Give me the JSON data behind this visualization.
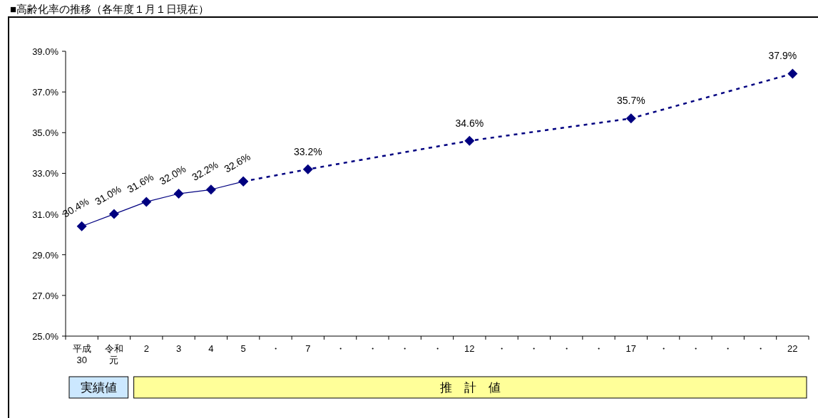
{
  "chart_data": {
    "type": "line",
    "title": "■高齢化率の推移（各年度１月１日現在）",
    "categories": [
      "平成30",
      "令和元",
      "2",
      "3",
      "4",
      "5",
      "・",
      "7",
      "・",
      "・",
      "・",
      "・",
      "12",
      "・",
      "・",
      "・",
      "・",
      "17",
      "・",
      "・",
      "・",
      "・",
      "22"
    ],
    "series": [
      {
        "color": "#000080",
        "line_style": "solid",
        "values": [
          30.4,
          31.0,
          31.6,
          32.0,
          32.2,
          32.6,
          null,
          null,
          null,
          null,
          null,
          null,
          null,
          null,
          null,
          null,
          null,
          null,
          null,
          null,
          null,
          null,
          null
        ]
      },
      {
        "color": "#000080",
        "line_style": "dashed",
        "values": [
          null,
          null,
          null,
          null,
          null,
          32.6,
          null,
          33.2,
          null,
          null,
          null,
          null,
          34.6,
          null,
          null,
          null,
          null,
          35.7,
          null,
          null,
          null,
          null,
          37.9
        ]
      }
    ],
    "value_labels": [
      "30.4%",
      "31.0%",
      "31.6%",
      "32.0%",
      "32.2%",
      "32.6%",
      null,
      "33.2%",
      null,
      null,
      null,
      null,
      "34.6%",
      null,
      null,
      null,
      null,
      "35.7%",
      null,
      null,
      null,
      null,
      "37.9%"
    ],
    "marker": "diamond",
    "ylim": [
      25,
      39
    ],
    "yticks": [
      {
        "value": 25,
        "label": "25.0%"
      },
      {
        "value": 27,
        "label": "27.0%"
      },
      {
        "value": 29,
        "label": "29.0%"
      },
      {
        "value": 31,
        "label": "31.0%"
      },
      {
        "value": 33,
        "label": "33.0%"
      },
      {
        "value": 35,
        "label": "35.0%"
      },
      {
        "value": 37,
        "label": "37.0%"
      },
      {
        "value": 39,
        "label": "39.0%"
      }
    ],
    "grid": false,
    "annotations": [
      "実績値",
      "推　計　値"
    ]
  }
}
